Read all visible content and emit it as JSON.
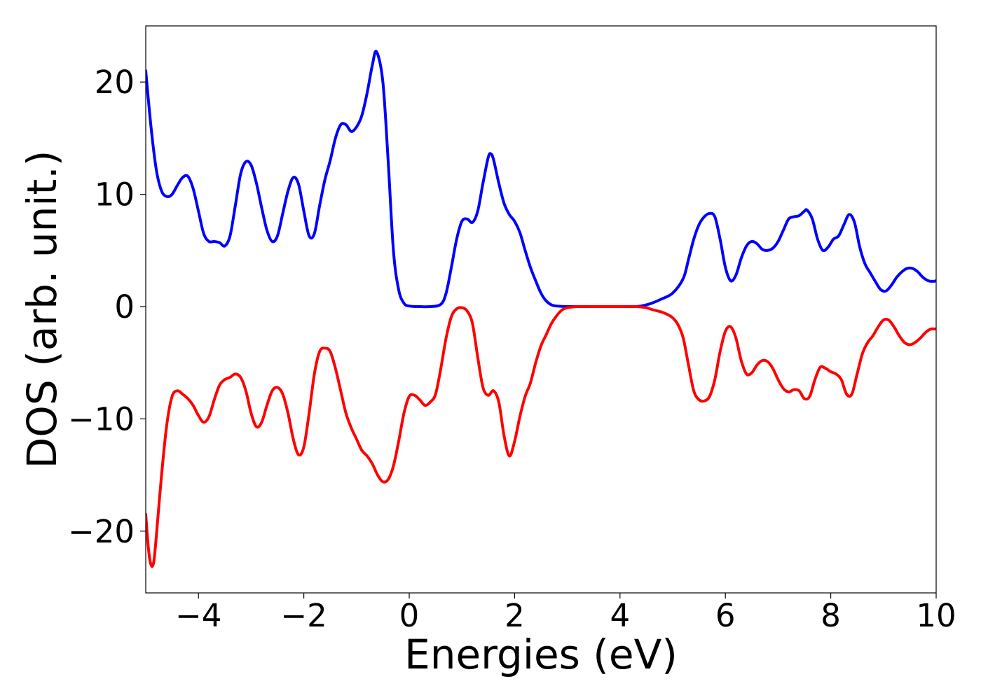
{
  "chart_data": {
    "type": "line",
    "title": "",
    "xlabel": "Energies (eV)",
    "ylabel": "DOS (arb. unit.)",
    "xlim": [
      -5,
      10
    ],
    "ylim": [
      -25.5,
      25
    ],
    "xticks": [
      -4,
      -2,
      0,
      2,
      4,
      6,
      8,
      10
    ],
    "xtick_labels": [
      "−4",
      "−2",
      "0",
      "2",
      "4",
      "6",
      "8",
      "10"
    ],
    "yticks": [
      -20,
      -10,
      0,
      10,
      20
    ],
    "ytick_labels": [
      "−20",
      "−10",
      "0",
      "10",
      "20"
    ],
    "grid": false,
    "legend": "none",
    "series": [
      {
        "color": "#0000ff",
        "points": [
          [
            -5.0,
            21.0
          ],
          [
            -4.9,
            16.0
          ],
          [
            -4.8,
            12.2
          ],
          [
            -4.7,
            10.3
          ],
          [
            -4.6,
            9.8
          ],
          [
            -4.5,
            10.0
          ],
          [
            -4.4,
            10.8
          ],
          [
            -4.3,
            11.5
          ],
          [
            -4.2,
            11.6
          ],
          [
            -4.1,
            10.5
          ],
          [
            -4.0,
            8.5
          ],
          [
            -3.9,
            6.5
          ],
          [
            -3.8,
            5.8
          ],
          [
            -3.7,
            5.8
          ],
          [
            -3.6,
            5.7
          ],
          [
            -3.5,
            5.4
          ],
          [
            -3.4,
            6.3
          ],
          [
            -3.3,
            9.0
          ],
          [
            -3.2,
            11.8
          ],
          [
            -3.1,
            12.9
          ],
          [
            -3.0,
            12.6
          ],
          [
            -2.9,
            11.0
          ],
          [
            -2.8,
            8.8
          ],
          [
            -2.7,
            6.8
          ],
          [
            -2.6,
            5.8
          ],
          [
            -2.5,
            6.3
          ],
          [
            -2.4,
            8.3
          ],
          [
            -2.3,
            10.3
          ],
          [
            -2.2,
            11.5
          ],
          [
            -2.1,
            10.9
          ],
          [
            -2.0,
            8.5
          ],
          [
            -1.9,
            6.3
          ],
          [
            -1.8,
            6.5
          ],
          [
            -1.7,
            9.0
          ],
          [
            -1.6,
            11.3
          ],
          [
            -1.5,
            13.0
          ],
          [
            -1.4,
            15.0
          ],
          [
            -1.3,
            16.2
          ],
          [
            -1.2,
            16.2
          ],
          [
            -1.1,
            15.6
          ],
          [
            -1.0,
            16.0
          ],
          [
            -0.9,
            17.0
          ],
          [
            -0.8,
            19.0
          ],
          [
            -0.7,
            21.5
          ],
          [
            -0.62,
            22.7
          ],
          [
            -0.5,
            20.0
          ],
          [
            -0.4,
            13.0
          ],
          [
            -0.3,
            5.0
          ],
          [
            -0.2,
            1.5
          ],
          [
            -0.1,
            0.3
          ],
          [
            0.0,
            0.05
          ],
          [
            0.2,
            0.0
          ],
          [
            0.4,
            0.0
          ],
          [
            0.6,
            0.2
          ],
          [
            0.7,
            1.2
          ],
          [
            0.8,
            3.5
          ],
          [
            0.9,
            6.0
          ],
          [
            1.0,
            7.6
          ],
          [
            1.1,
            7.8
          ],
          [
            1.2,
            7.5
          ],
          [
            1.3,
            8.5
          ],
          [
            1.4,
            11.0
          ],
          [
            1.5,
            13.3
          ],
          [
            1.55,
            13.6
          ],
          [
            1.6,
            13.1
          ],
          [
            1.7,
            11.0
          ],
          [
            1.8,
            9.2
          ],
          [
            1.9,
            8.2
          ],
          [
            2.0,
            7.6
          ],
          [
            2.1,
            6.6
          ],
          [
            2.2,
            5.0
          ],
          [
            2.3,
            3.5
          ],
          [
            2.4,
            2.3
          ],
          [
            2.5,
            1.2
          ],
          [
            2.6,
            0.5
          ],
          [
            2.7,
            0.15
          ],
          [
            2.8,
            0.05
          ],
          [
            3.0,
            0.0
          ],
          [
            3.5,
            0.0
          ],
          [
            4.0,
            0.0
          ],
          [
            4.2,
            0.0
          ],
          [
            4.4,
            0.05
          ],
          [
            4.6,
            0.3
          ],
          [
            4.8,
            0.7
          ],
          [
            5.0,
            1.2
          ],
          [
            5.2,
            2.5
          ],
          [
            5.3,
            4.2
          ],
          [
            5.4,
            6.0
          ],
          [
            5.5,
            7.3
          ],
          [
            5.6,
            8.0
          ],
          [
            5.7,
            8.3
          ],
          [
            5.8,
            8.0
          ],
          [
            5.9,
            6.0
          ],
          [
            6.0,
            3.5
          ],
          [
            6.1,
            2.3
          ],
          [
            6.2,
            2.8
          ],
          [
            6.3,
            4.3
          ],
          [
            6.4,
            5.4
          ],
          [
            6.5,
            5.8
          ],
          [
            6.6,
            5.6
          ],
          [
            6.7,
            5.1
          ],
          [
            6.8,
            5.0
          ],
          [
            6.9,
            5.2
          ],
          [
            7.0,
            5.8
          ],
          [
            7.1,
            6.8
          ],
          [
            7.2,
            7.8
          ],
          [
            7.3,
            8.0
          ],
          [
            7.4,
            8.1
          ],
          [
            7.5,
            8.5
          ],
          [
            7.55,
            8.6
          ],
          [
            7.65,
            7.8
          ],
          [
            7.75,
            6.0
          ],
          [
            7.85,
            5.0
          ],
          [
            7.95,
            5.3
          ],
          [
            8.05,
            6.0
          ],
          [
            8.15,
            6.3
          ],
          [
            8.25,
            7.3
          ],
          [
            8.35,
            8.2
          ],
          [
            8.45,
            7.5
          ],
          [
            8.55,
            5.3
          ],
          [
            8.65,
            3.8
          ],
          [
            8.75,
            3.0
          ],
          [
            8.85,
            2.2
          ],
          [
            8.95,
            1.5
          ],
          [
            9.05,
            1.4
          ],
          [
            9.15,
            1.9
          ],
          [
            9.25,
            2.6
          ],
          [
            9.35,
            3.1
          ],
          [
            9.45,
            3.4
          ],
          [
            9.55,
            3.4
          ],
          [
            9.65,
            3.1
          ],
          [
            9.75,
            2.6
          ],
          [
            9.85,
            2.3
          ],
          [
            9.95,
            2.25
          ],
          [
            10.0,
            2.3
          ]
        ]
      },
      {
        "color": "#ff0000",
        "points": [
          [
            -5.0,
            -18.5
          ],
          [
            -4.95,
            -21.5
          ],
          [
            -4.9,
            -23.0
          ],
          [
            -4.85,
            -22.8
          ],
          [
            -4.8,
            -20.5
          ],
          [
            -4.7,
            -15.0
          ],
          [
            -4.6,
            -10.5
          ],
          [
            -4.5,
            -8.0
          ],
          [
            -4.4,
            -7.5
          ],
          [
            -4.3,
            -7.8
          ],
          [
            -4.2,
            -8.2
          ],
          [
            -4.1,
            -8.8
          ],
          [
            -4.0,
            -9.7
          ],
          [
            -3.9,
            -10.3
          ],
          [
            -3.8,
            -9.8
          ],
          [
            -3.7,
            -8.3
          ],
          [
            -3.6,
            -7.0
          ],
          [
            -3.5,
            -6.5
          ],
          [
            -3.4,
            -6.3
          ],
          [
            -3.3,
            -6.0
          ],
          [
            -3.2,
            -6.3
          ],
          [
            -3.1,
            -7.5
          ],
          [
            -3.0,
            -9.5
          ],
          [
            -2.9,
            -10.7
          ],
          [
            -2.8,
            -10.3
          ],
          [
            -2.7,
            -8.8
          ],
          [
            -2.6,
            -7.5
          ],
          [
            -2.5,
            -7.2
          ],
          [
            -2.4,
            -7.8
          ],
          [
            -2.3,
            -9.5
          ],
          [
            -2.2,
            -11.8
          ],
          [
            -2.1,
            -13.2
          ],
          [
            -2.0,
            -12.5
          ],
          [
            -1.9,
            -9.5
          ],
          [
            -1.8,
            -6.0
          ],
          [
            -1.7,
            -4.0
          ],
          [
            -1.6,
            -3.7
          ],
          [
            -1.5,
            -4.0
          ],
          [
            -1.4,
            -5.5
          ],
          [
            -1.3,
            -7.5
          ],
          [
            -1.2,
            -9.5
          ],
          [
            -1.1,
            -10.8
          ],
          [
            -1.0,
            -11.8
          ],
          [
            -0.9,
            -12.8
          ],
          [
            -0.8,
            -13.3
          ],
          [
            -0.7,
            -14.0
          ],
          [
            -0.6,
            -15.0
          ],
          [
            -0.5,
            -15.6
          ],
          [
            -0.4,
            -15.4
          ],
          [
            -0.3,
            -14.2
          ],
          [
            -0.2,
            -12.0
          ],
          [
            -0.1,
            -9.5
          ],
          [
            0.0,
            -8.0
          ],
          [
            0.1,
            -7.9
          ],
          [
            0.2,
            -8.3
          ],
          [
            0.3,
            -8.8
          ],
          [
            0.4,
            -8.5
          ],
          [
            0.5,
            -7.8
          ],
          [
            0.6,
            -5.5
          ],
          [
            0.7,
            -2.8
          ],
          [
            0.8,
            -0.9
          ],
          [
            0.9,
            -0.2
          ],
          [
            1.0,
            -0.1
          ],
          [
            1.1,
            -0.4
          ],
          [
            1.2,
            -1.5
          ],
          [
            1.3,
            -4.5
          ],
          [
            1.4,
            -7.2
          ],
          [
            1.5,
            -7.9
          ],
          [
            1.6,
            -7.5
          ],
          [
            1.7,
            -8.5
          ],
          [
            1.8,
            -11.5
          ],
          [
            1.9,
            -13.3
          ],
          [
            2.0,
            -12.0
          ],
          [
            2.1,
            -9.8
          ],
          [
            2.2,
            -8.0
          ],
          [
            2.3,
            -6.8
          ],
          [
            2.4,
            -5.0
          ],
          [
            2.5,
            -3.5
          ],
          [
            2.6,
            -2.5
          ],
          [
            2.7,
            -1.5
          ],
          [
            2.8,
            -0.8
          ],
          [
            2.9,
            -0.3
          ],
          [
            3.0,
            -0.1
          ],
          [
            3.2,
            0.0
          ],
          [
            3.5,
            0.0
          ],
          [
            4.0,
            0.0
          ],
          [
            4.3,
            0.0
          ],
          [
            4.5,
            -0.1
          ],
          [
            4.6,
            -0.25
          ],
          [
            4.8,
            -0.5
          ],
          [
            4.9,
            -0.7
          ],
          [
            5.0,
            -1.0
          ],
          [
            5.1,
            -1.6
          ],
          [
            5.2,
            -2.8
          ],
          [
            5.3,
            -5.2
          ],
          [
            5.4,
            -7.5
          ],
          [
            5.5,
            -8.3
          ],
          [
            5.6,
            -8.4
          ],
          [
            5.7,
            -8.0
          ],
          [
            5.8,
            -6.5
          ],
          [
            5.9,
            -4.0
          ],
          [
            6.0,
            -2.2
          ],
          [
            6.1,
            -1.8
          ],
          [
            6.2,
            -2.8
          ],
          [
            6.3,
            -4.8
          ],
          [
            6.4,
            -6.0
          ],
          [
            6.5,
            -5.9
          ],
          [
            6.6,
            -5.2
          ],
          [
            6.7,
            -4.8
          ],
          [
            6.8,
            -4.9
          ],
          [
            6.9,
            -5.5
          ],
          [
            7.0,
            -6.5
          ],
          [
            7.1,
            -7.3
          ],
          [
            7.2,
            -7.6
          ],
          [
            7.3,
            -7.4
          ],
          [
            7.4,
            -7.5
          ],
          [
            7.5,
            -8.2
          ],
          [
            7.6,
            -8.0
          ],
          [
            7.7,
            -6.5
          ],
          [
            7.8,
            -5.4
          ],
          [
            7.9,
            -5.5
          ],
          [
            8.0,
            -5.8
          ],
          [
            8.1,
            -6.0
          ],
          [
            8.2,
            -6.5
          ],
          [
            8.3,
            -7.8
          ],
          [
            8.4,
            -7.8
          ],
          [
            8.5,
            -6.0
          ],
          [
            8.6,
            -4.2
          ],
          [
            8.7,
            -3.2
          ],
          [
            8.8,
            -2.6
          ],
          [
            8.9,
            -1.8
          ],
          [
            9.0,
            -1.2
          ],
          [
            9.1,
            -1.2
          ],
          [
            9.2,
            -1.8
          ],
          [
            9.3,
            -2.6
          ],
          [
            9.4,
            -3.2
          ],
          [
            9.5,
            -3.4
          ],
          [
            9.6,
            -3.2
          ],
          [
            9.7,
            -2.8
          ],
          [
            9.8,
            -2.3
          ],
          [
            9.9,
            -2.0
          ],
          [
            10.0,
            -2.0
          ]
        ]
      }
    ]
  }
}
